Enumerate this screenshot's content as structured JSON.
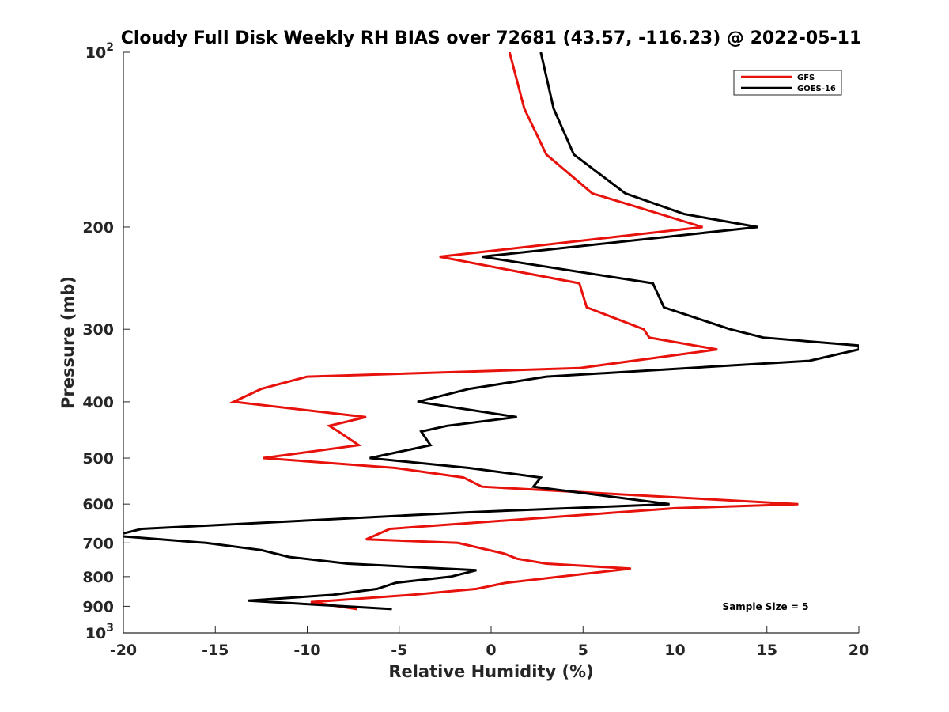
{
  "chart_data": {
    "type": "line",
    "title": "Cloudy Full Disk Weekly RH BIAS over 72681 (43.57, -116.23) @ 2022-05-11",
    "xlabel": "Relative Humidity (%)",
    "ylabel": "Pressure (mb)",
    "xlim": [
      -20,
      20
    ],
    "ylim": [
      100,
      1000
    ],
    "y_scale": "log",
    "y_reversed": true,
    "x_ticks": [
      "-20",
      "-15",
      "-10",
      "-5",
      "0",
      "5",
      "10",
      "15",
      "20"
    ],
    "y_ticks": [
      {
        "value": 100,
        "base": "10",
        "exp": "2"
      },
      {
        "value": 200,
        "label": "200"
      },
      {
        "value": 300,
        "label": "300"
      },
      {
        "value": 400,
        "label": "400"
      },
      {
        "value": 500,
        "label": "500"
      },
      {
        "value": 600,
        "label": "600"
      },
      {
        "value": 700,
        "label": "700"
      },
      {
        "value": 800,
        "label": "800"
      },
      {
        "value": 900,
        "label": "900"
      },
      {
        "value": 1000,
        "base": "10",
        "exp": "3"
      }
    ],
    "legend_position": "top-right",
    "annotation": "Sample Size = 5",
    "series": [
      {
        "name": "GFS",
        "color": "#e8120c",
        "points": [
          [
            1.0,
            100
          ],
          [
            1.8,
            125
          ],
          [
            3.0,
            150
          ],
          [
            5.5,
            175
          ],
          [
            11.5,
            200
          ],
          [
            -2.8,
            225
          ],
          [
            4.8,
            250
          ],
          [
            5.2,
            275
          ],
          [
            8.3,
            300
          ],
          [
            8.6,
            310
          ],
          [
            12.3,
            325
          ],
          [
            4.8,
            350
          ],
          [
            -10.0,
            362
          ],
          [
            -12.5,
            380
          ],
          [
            -14.0,
            400
          ],
          [
            -6.8,
            425
          ],
          [
            -8.8,
            440
          ],
          [
            -8.3,
            450
          ],
          [
            -7.2,
            475
          ],
          [
            -12.4,
            500
          ],
          [
            -5.2,
            520
          ],
          [
            -1.5,
            540
          ],
          [
            -0.5,
            560
          ],
          [
            16.7,
            600
          ],
          [
            10.0,
            610
          ],
          [
            -5.5,
            662
          ],
          [
            -6.8,
            690
          ],
          [
            -1.8,
            700
          ],
          [
            0.7,
            730
          ],
          [
            1.4,
            745
          ],
          [
            3.0,
            760
          ],
          [
            7.6,
            775
          ],
          [
            0.8,
            820
          ],
          [
            -0.8,
            840
          ],
          [
            -4.3,
            860
          ],
          [
            -9.8,
            885
          ],
          [
            -7.3,
            910
          ]
        ]
      },
      {
        "name": "GOES-16",
        "color": "#000000",
        "points": [
          [
            2.7,
            100
          ],
          [
            3.4,
            125
          ],
          [
            4.5,
            150
          ],
          [
            7.3,
            175
          ],
          [
            10.5,
            190
          ],
          [
            14.5,
            200
          ],
          [
            -0.5,
            225
          ],
          [
            8.8,
            250
          ],
          [
            9.4,
            275
          ],
          [
            13.0,
            300
          ],
          [
            14.8,
            310
          ],
          [
            20.0,
            320
          ],
          [
            20.0,
            325
          ],
          [
            17.3,
            340
          ],
          [
            3.0,
            362
          ],
          [
            -1.2,
            380
          ],
          [
            -4.0,
            400
          ],
          [
            1.4,
            425
          ],
          [
            -2.4,
            440
          ],
          [
            -3.8,
            450
          ],
          [
            -3.3,
            475
          ],
          [
            -6.6,
            500
          ],
          [
            -1.2,
            520
          ],
          [
            2.7,
            540
          ],
          [
            2.3,
            560
          ],
          [
            9.7,
            600
          ],
          [
            -1.3,
            620
          ],
          [
            -19.0,
            662
          ],
          [
            -20.5,
            680
          ],
          [
            -15.5,
            700
          ],
          [
            -12.5,
            720
          ],
          [
            -11.0,
            740
          ],
          [
            -7.8,
            760
          ],
          [
            -0.8,
            780
          ],
          [
            -2.2,
            800
          ],
          [
            -5.2,
            820
          ],
          [
            -6.2,
            840
          ],
          [
            -8.6,
            860
          ],
          [
            -13.2,
            880
          ],
          [
            -5.4,
            910
          ]
        ]
      }
    ]
  }
}
